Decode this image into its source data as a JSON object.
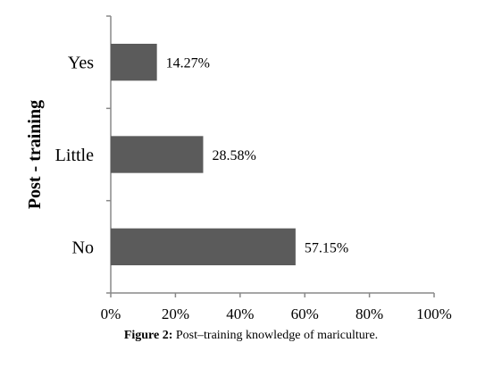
{
  "chart_data": {
    "type": "bar",
    "orientation": "horizontal",
    "categories": [
      "No",
      "Little",
      "Yes"
    ],
    "values": [
      57.15,
      28.58,
      14.27
    ],
    "value_labels": [
      "57.15%",
      "28.58%",
      "14.27%"
    ],
    "xlabel": "",
    "ylabel": "Post - training",
    "xlim": [
      0,
      100
    ],
    "xticks": [
      "0%",
      "20%",
      "40%",
      "60%",
      "80%",
      "100%"
    ],
    "grid": false,
    "legend": "none",
    "bar_color": "#5b5b5b"
  },
  "caption": {
    "label": "Figure 2:",
    "text": " Post–training knowledge of mariculture."
  }
}
